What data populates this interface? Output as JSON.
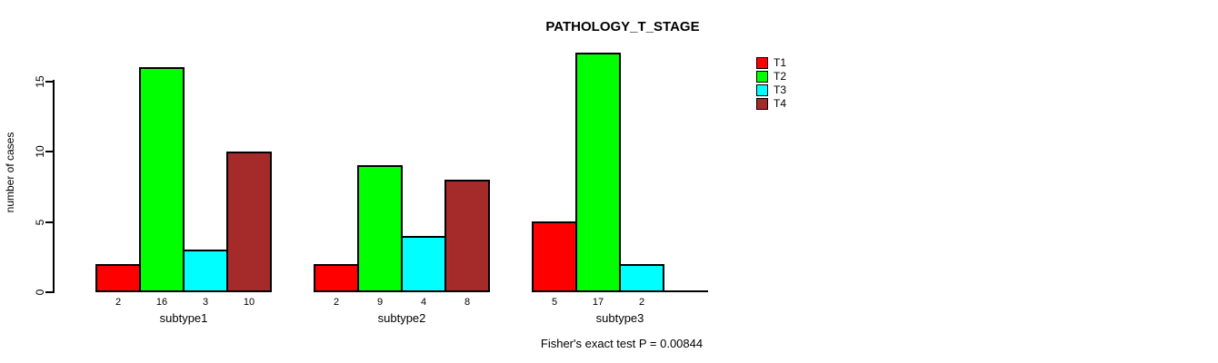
{
  "chart_data": {
    "type": "bar",
    "title": "PATHOLOGY_T_STAGE",
    "xlabel": "",
    "ylabel": "number of cases",
    "ylim": [
      0,
      15
    ],
    "yticks": [
      0,
      5,
      10,
      15
    ],
    "grid": false,
    "legend_position": "right-outside",
    "categories": [
      "subtype1",
      "subtype2",
      "subtype3"
    ],
    "series": [
      {
        "name": "T1",
        "color": "#FF0000",
        "values": [
          2,
          2,
          5
        ]
      },
      {
        "name": "T2",
        "color": "#00FF00",
        "values": [
          16,
          9,
          17
        ]
      },
      {
        "name": "T3",
        "color": "#00FFFF",
        "values": [
          3,
          4,
          2
        ]
      },
      {
        "name": "T4",
        "color": "#A52A2A",
        "values": [
          10,
          8,
          0
        ]
      }
    ],
    "bar_value_labels": [
      [
        "2",
        "16",
        "3",
        "10"
      ],
      [
        "2",
        "9",
        "4",
        "8"
      ],
      [
        "5",
        "17",
        "2",
        ""
      ]
    ],
    "annotation": "Fisher's exact test P = 0.00844"
  }
}
